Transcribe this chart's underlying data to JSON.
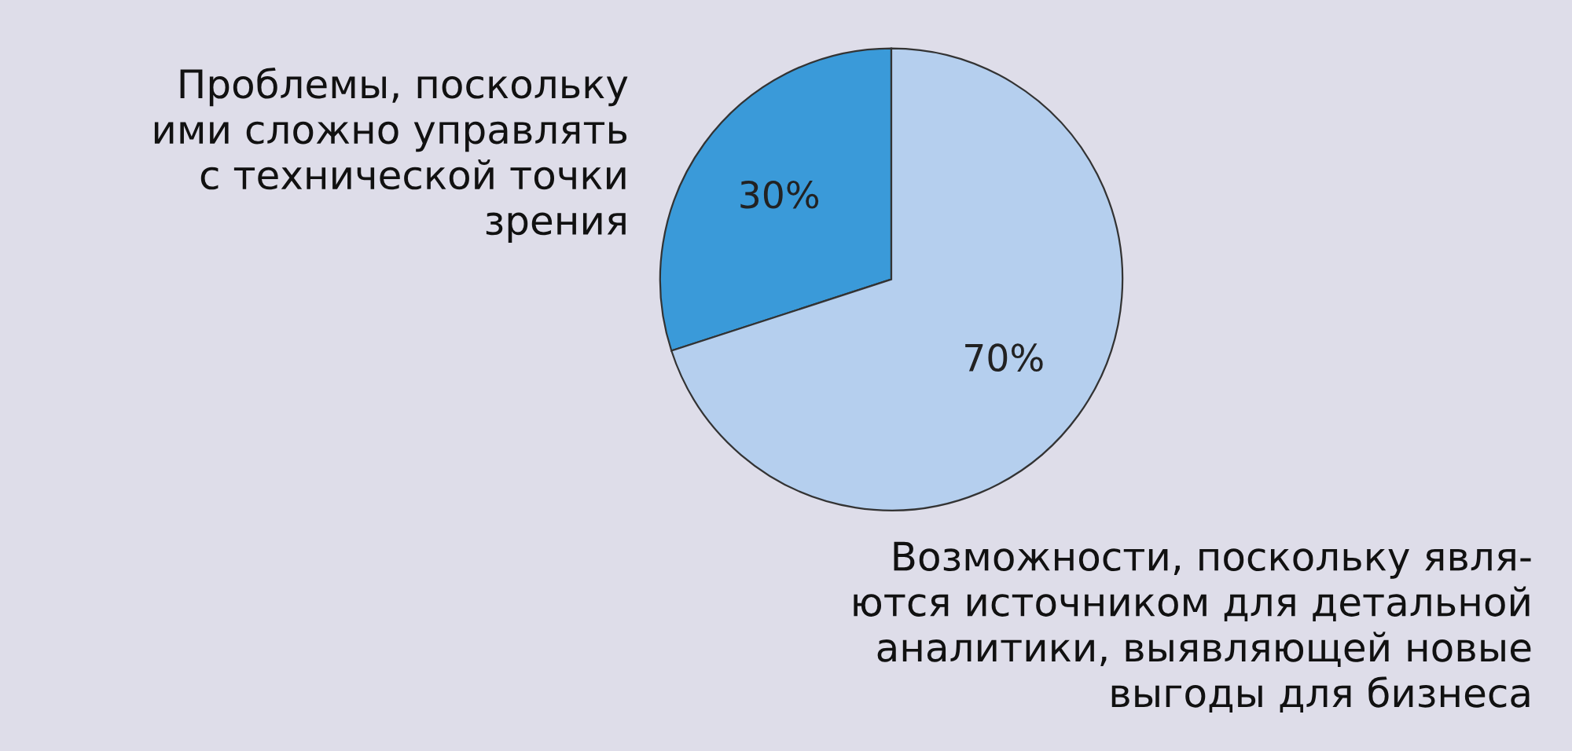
{
  "chart_data": {
    "type": "pie",
    "categories": [
      "Проблемы, поскольку\nими сложно управлять\nс технической точки\nзрения",
      "Возможности, поскольку явля-\nются источником для детальной\nаналитики, выявляющей новые\nвыгоды для бизнеса"
    ],
    "values": [
      30,
      70
    ],
    "colors": [
      "#3a9ad9",
      "#b5cfee"
    ],
    "value_labels": [
      "30%",
      "70%"
    ]
  }
}
